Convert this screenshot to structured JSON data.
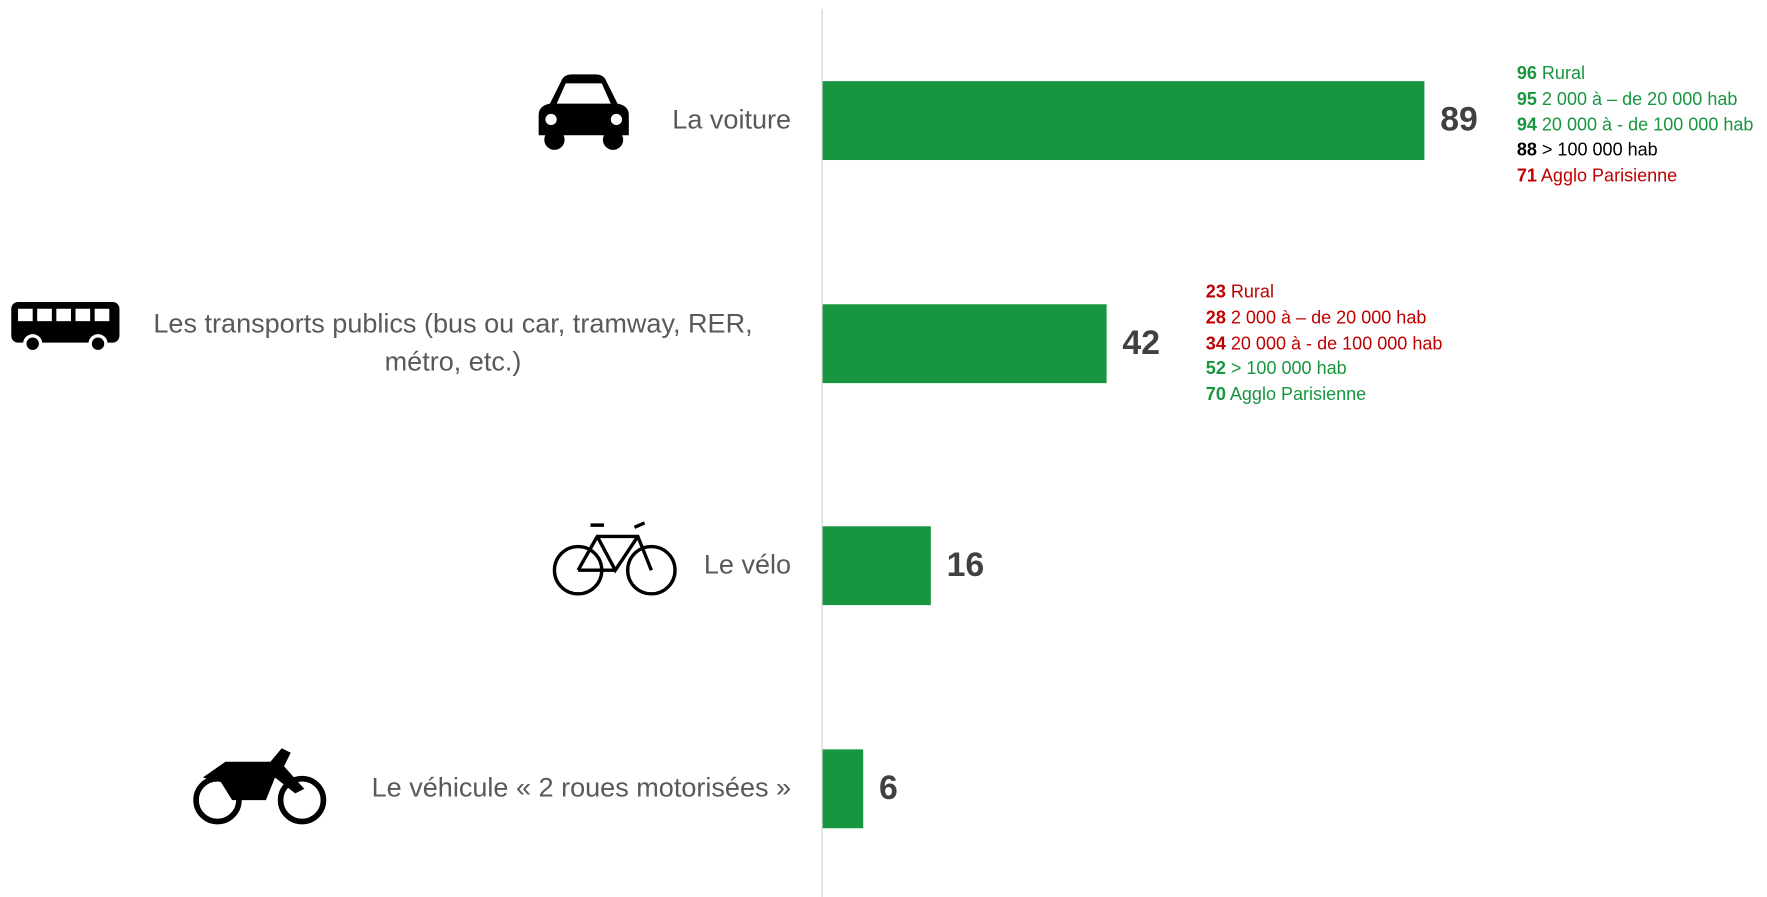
{
  "chart_data": {
    "type": "hbar",
    "categories": [
      "La voiture",
      "Les transports publics (bus ou car, tramway, RER, métro, etc.)",
      "Le vélo",
      "Le véhicule « 2 roues motorisées »"
    ],
    "values": [
      89,
      42,
      16,
      6
    ],
    "color": "#18963f",
    "breakdowns": [
      [
        {
          "value": 96,
          "label": "Rural",
          "color": "#18963f"
        },
        {
          "value": 95,
          "label": "2 000 à – de 20 000 hab",
          "color": "#18963f"
        },
        {
          "value": 94,
          "label": "20 000 à - de 100 000 hab",
          "color": "#18963f"
        },
        {
          "value": 88,
          "label": "> 100 000 hab",
          "color": "#000000"
        },
        {
          "value": 71,
          "label": "Agglo Parisienne",
          "color": "#c00000"
        }
      ],
      [
        {
          "value": 23,
          "label": "Rural",
          "color": "#c00000"
        },
        {
          "value": 28,
          "label": "2 000 à – de 20 000 hab",
          "color": "#c00000"
        },
        {
          "value": 34,
          "label": "20 000 à - de 100 000 hab",
          "color": "#c00000"
        },
        {
          "value": 52,
          "label": "> 100 000 hab",
          "color": "#18963f"
        },
        {
          "value": 70,
          "label": "Agglo Parisienne",
          "color": "#18963f"
        }
      ],
      [],
      []
    ]
  }
}
